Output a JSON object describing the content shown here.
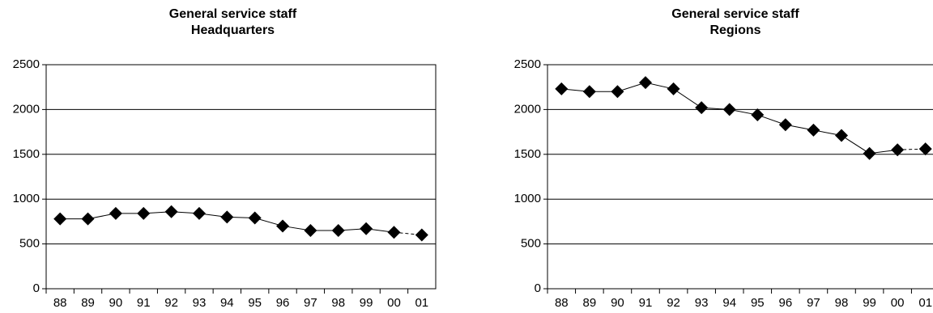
{
  "chart_data": [
    {
      "type": "line",
      "title": "General service staff",
      "subtitle": "Headquarters",
      "categories": [
        "88",
        "89",
        "90",
        "91",
        "92",
        "93",
        "94",
        "95",
        "96",
        "97",
        "98",
        "99",
        "00",
        "01"
      ],
      "series": [
        {
          "name": "Headquarters",
          "color": "#000000",
          "values": [
            780,
            780,
            840,
            840,
            860,
            840,
            800,
            790,
            700,
            650,
            650,
            670,
            630,
            600
          ]
        }
      ],
      "ylim": [
        0,
        2500
      ],
      "yticks": [
        0,
        500,
        1000,
        1500,
        2000,
        2500
      ],
      "grid": true
    },
    {
      "type": "line",
      "title": "General service staff",
      "subtitle": "Regions",
      "categories": [
        "88",
        "89",
        "90",
        "91",
        "92",
        "93",
        "94",
        "95",
        "96",
        "97",
        "98",
        "99",
        "00",
        "01"
      ],
      "series": [
        {
          "name": "Regions",
          "color": "#000000",
          "values": [
            2230,
            2200,
            2200,
            2300,
            2230,
            2020,
            2000,
            1940,
            1830,
            1770,
            1710,
            1510,
            1550,
            1560
          ]
        }
      ],
      "ylim": [
        0,
        2500
      ],
      "yticks": [
        0,
        500,
        1000,
        1500,
        2000,
        2500
      ],
      "grid": true
    }
  ]
}
